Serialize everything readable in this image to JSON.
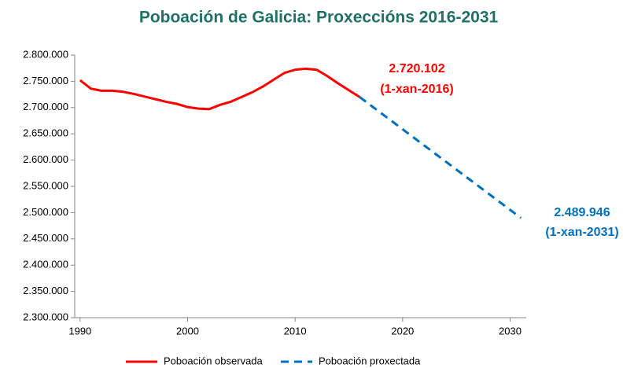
{
  "chart_data": {
    "type": "line",
    "title": "Poboación de Galicia: Proxeccións 2016-2031",
    "x": [
      1990,
      1991,
      1992,
      1993,
      1994,
      1995,
      1996,
      1997,
      1998,
      1999,
      2000,
      2001,
      2002,
      2003,
      2004,
      2005,
      2006,
      2007,
      2008,
      2009,
      2010,
      2011,
      2012,
      2013,
      2014,
      2015,
      2016,
      2017,
      2018,
      2019,
      2020,
      2021,
      2022,
      2023,
      2024,
      2025,
      2026,
      2027,
      2028,
      2029,
      2030,
      2031
    ],
    "series": [
      {
        "name": "Poboación observada",
        "color": "#ff0000",
        "dash": false,
        "values": [
          2752000,
          2736000,
          2732000,
          2732000,
          2730000,
          2726000,
          2721000,
          2716000,
          2711000,
          2707000,
          2701000,
          2698000,
          2697000,
          2705000,
          2711000,
          2720000,
          2729000,
          2740000,
          2753000,
          2766000,
          2772000,
          2774000,
          2772000,
          2760000,
          2746000,
          2733000,
          2720102,
          null,
          null,
          null,
          null,
          null,
          null,
          null,
          null,
          null,
          null,
          null,
          null,
          null,
          null,
          null
        ]
      },
      {
        "name": "Poboación proxectada",
        "color": "#0070c0",
        "dash": true,
        "values": [
          null,
          null,
          null,
          null,
          null,
          null,
          null,
          null,
          null,
          null,
          null,
          null,
          null,
          null,
          null,
          null,
          null,
          null,
          null,
          null,
          null,
          null,
          null,
          null,
          null,
          null,
          2720102,
          2704758,
          2689415,
          2674071,
          2658727,
          2643383,
          2628040,
          2612696,
          2597352,
          2582008,
          2566665,
          2551321,
          2535977,
          2520633,
          2505290,
          2489946
        ]
      }
    ],
    "xlim": [
      1989.5,
      2031.5
    ],
    "xticks": [
      1990,
      2000,
      2010,
      2020,
      2030
    ],
    "ylim": [
      2300000,
      2800000
    ],
    "yticks": [
      {
        "value": 2300000,
        "label": "2.300.000"
      },
      {
        "value": 2350000,
        "label": "2.350.000"
      },
      {
        "value": 2400000,
        "label": "2.400.000"
      },
      {
        "value": 2450000,
        "label": "2.450.000"
      },
      {
        "value": 2500000,
        "label": "2.500.000"
      },
      {
        "value": 2550000,
        "label": "2.550.000"
      },
      {
        "value": 2600000,
        "label": "2.600.000"
      },
      {
        "value": 2650000,
        "label": "2.650.000"
      },
      {
        "value": 2700000,
        "label": "2.700.000"
      },
      {
        "value": 2750000,
        "label": "2.750.000"
      },
      {
        "value": 2800000,
        "label": "2.800.000"
      }
    ],
    "grid": false,
    "legend": "bottom",
    "annotations": [
      {
        "text": "2.720.102",
        "color": "#ff0000"
      },
      {
        "text": "(1-xan-2016)",
        "color": "#ff0000"
      },
      {
        "text": "2.489.946",
        "color": "#0070c0"
      },
      {
        "text": "(1-xan-2031)",
        "color": "#0070c0"
      }
    ]
  }
}
